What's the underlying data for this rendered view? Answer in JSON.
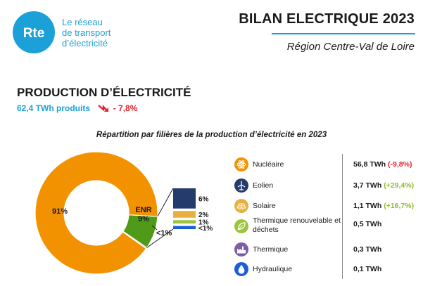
{
  "header": {
    "logo_mark": "Rte",
    "logo_lines": [
      "Le réseau",
      "de transport",
      "d’électricité"
    ],
    "title": "BILAN ELECTRIQUE 2023",
    "region": "Région Centre-Val de Loire"
  },
  "section": {
    "title": "PRODUCTION D’ÉLECTRICITÉ",
    "total": "62,4 TWh produits",
    "change": "- 7,8%",
    "change_direction": "down"
  },
  "colors": {
    "brand": "#1ca0d8",
    "negative": "#e8202a",
    "positive": "#8fbf26",
    "nucleaire": "#f39200",
    "enr": "#4f9a19",
    "thermique": "#7b5ea7",
    "eolien": "#243b6b",
    "solaire": "#e9b040",
    "thermique_renouvelable": "#9cc43c",
    "hydraulique": "#1b5fd6"
  },
  "chart_data": {
    "type": "pie",
    "title": "Répartition par filières de la production d’électricité en 2023",
    "slices": [
      {
        "name": "Nucléaire",
        "percent": 91,
        "label": "91%"
      },
      {
        "name": "ENR",
        "percent": 8.7,
        "label": "ENR\n9%"
      },
      {
        "name": "Thermique",
        "percent": 0.3,
        "label": "<1%"
      }
    ],
    "enr_breakdown": [
      {
        "name": "Eolien",
        "percent": 6,
        "label": "6%"
      },
      {
        "name": "Solaire",
        "percent": 2,
        "label": "2%"
      },
      {
        "name": "Thermique renouvelable et déchets",
        "percent": 1,
        "label": "1%"
      },
      {
        "name": "Hydraulique",
        "percent": 0.2,
        "label": "<1%"
      }
    ],
    "legend": [
      {
        "name": "Nucléaire",
        "value": "56,8 TWh",
        "change": "(-9,8%)",
        "trend": "down",
        "icon": "atom-icon"
      },
      {
        "name": "Eolien",
        "value": "3,7 TWh",
        "change": "(+29,4%)",
        "trend": "up",
        "icon": "wind-turbine-icon"
      },
      {
        "name": "Solaire",
        "value": "1,1 TWh",
        "change": "(+16,7%)",
        "trend": "up",
        "icon": "solar-panel-icon"
      },
      {
        "name": "Thermique renouvelable et déchets",
        "value": "0,5 TWh",
        "change": "",
        "trend": "",
        "icon": "leaf-recycle-icon"
      },
      {
        "name": "Thermique",
        "value": "0,3 TWh",
        "change": "",
        "trend": "",
        "icon": "factory-icon"
      },
      {
        "name": "Hydraulique",
        "value": "0,1 TWh",
        "change": "",
        "trend": "",
        "icon": "water-drop-icon"
      }
    ]
  }
}
